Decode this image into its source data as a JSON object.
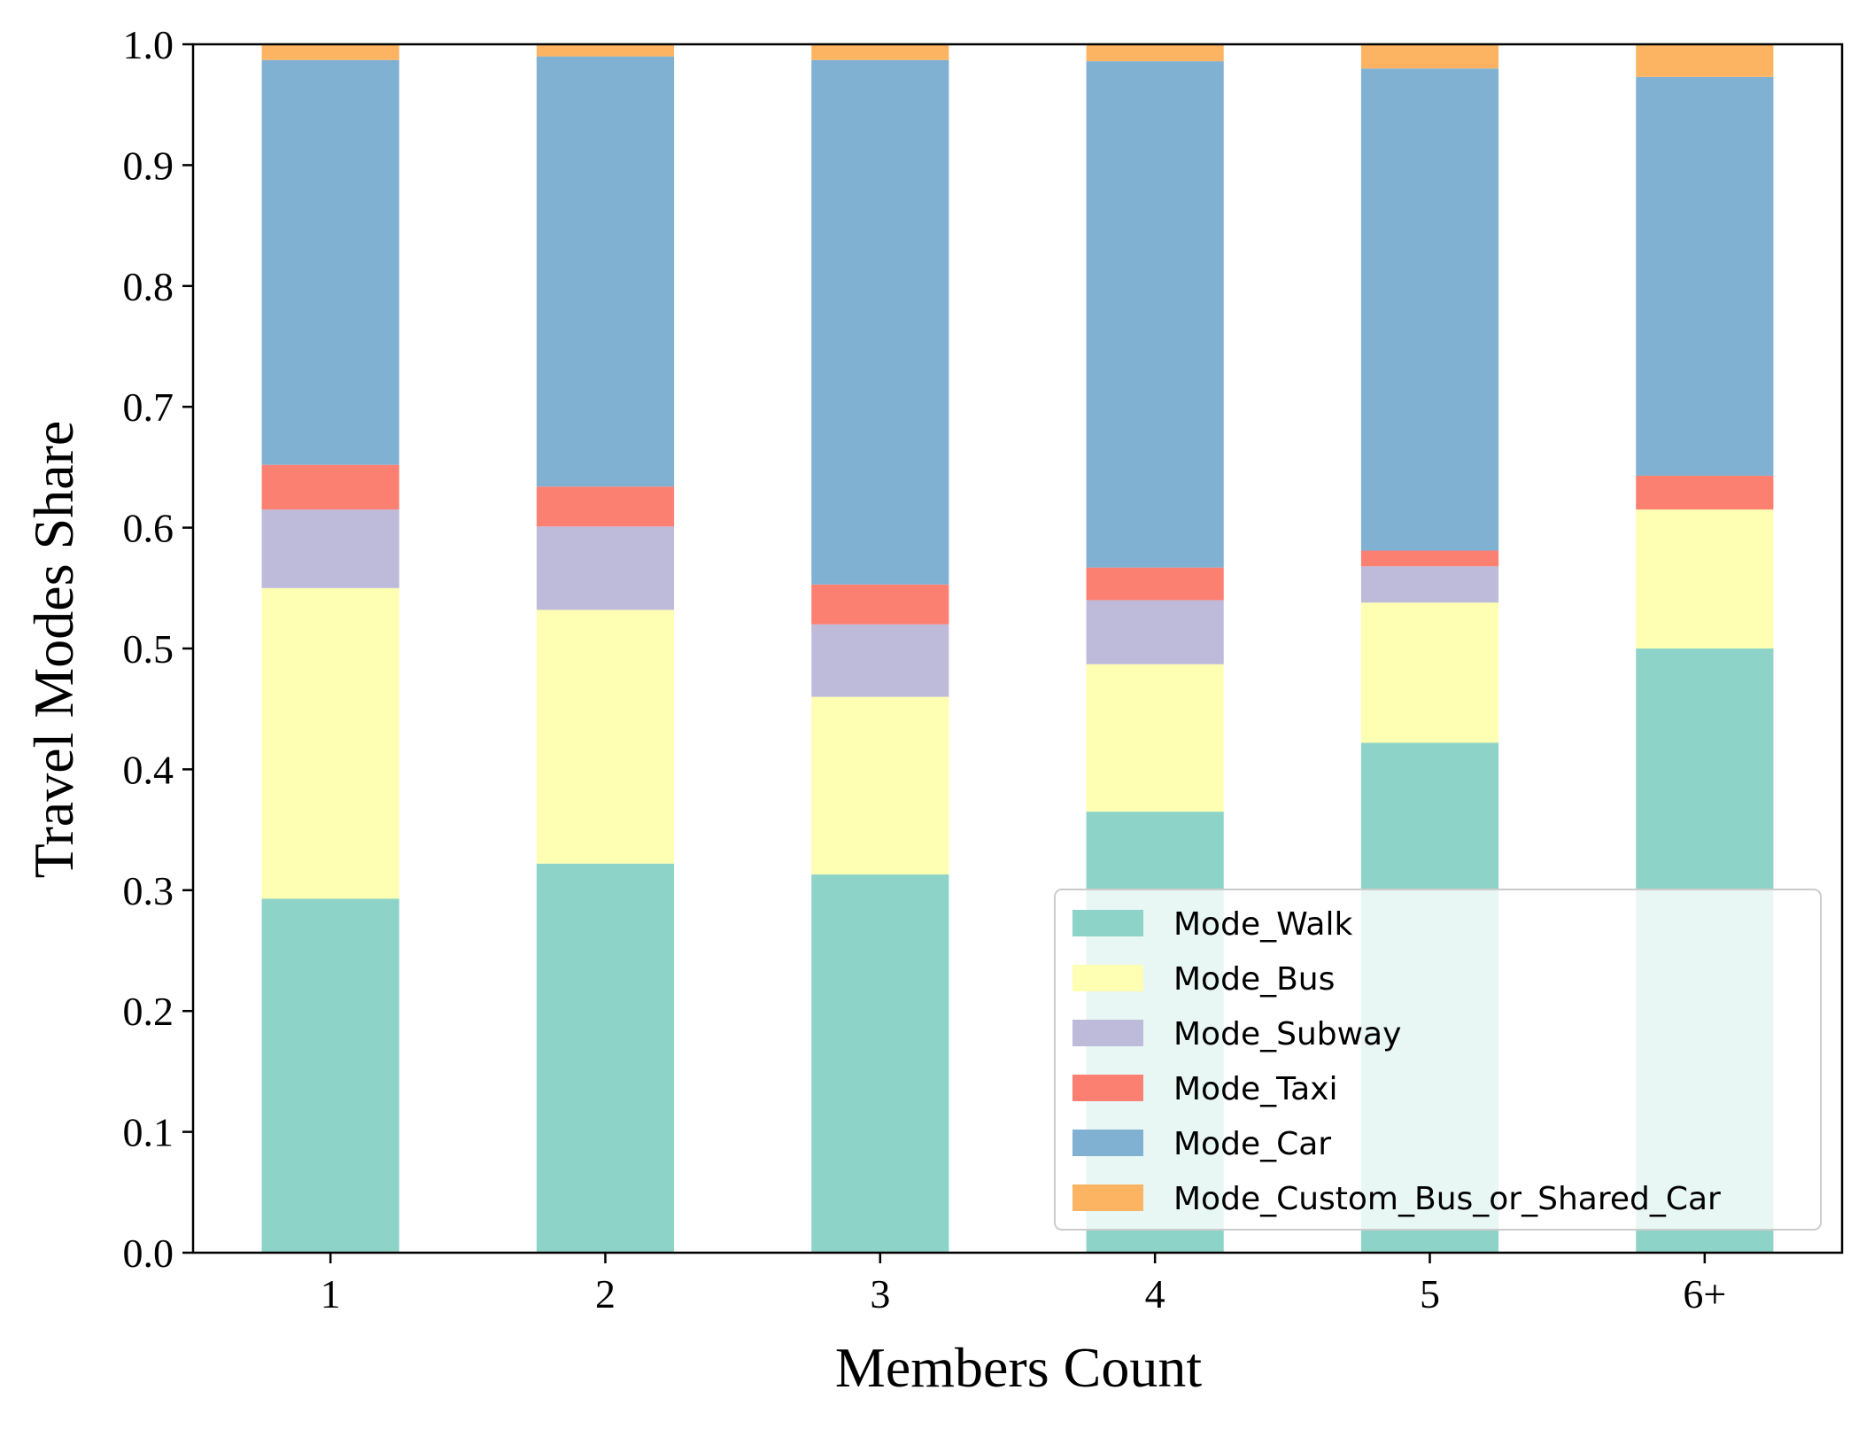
{
  "chart_data": {
    "type": "bar",
    "stacked": true,
    "categories": [
      "1",
      "2",
      "3",
      "4",
      "5",
      "6+"
    ],
    "series": [
      {
        "name": "Mode_Walk",
        "color": "#8dd3c7",
        "values": [
          0.293,
          0.322,
          0.313,
          0.365,
          0.422,
          0.5
        ]
      },
      {
        "name": "Mode_Bus",
        "color": "#ffffb3",
        "values": [
          0.257,
          0.21,
          0.147,
          0.122,
          0.116,
          0.115
        ]
      },
      {
        "name": "Mode_Subway",
        "color": "#bebada",
        "values": [
          0.065,
          0.069,
          0.06,
          0.053,
          0.03,
          0.0
        ]
      },
      {
        "name": "Mode_Taxi",
        "color": "#fb8072",
        "values": [
          0.037,
          0.033,
          0.033,
          0.027,
          0.013,
          0.028
        ]
      },
      {
        "name": "Mode_Car",
        "color": "#80b1d3",
        "values": [
          0.335,
          0.356,
          0.434,
          0.419,
          0.399,
          0.33
        ]
      },
      {
        "name": "Mode_Custom_Bus_or_Shared_Car",
        "color": "#fdb462",
        "values": [
          0.013,
          0.01,
          0.013,
          0.014,
          0.02,
          0.027
        ]
      }
    ],
    "xlabel": "Members Count",
    "ylabel": "Travel Modes Share",
    "ylim": [
      0.0,
      1.0
    ],
    "yticks": [
      "0.0",
      "0.1",
      "0.2",
      "0.3",
      "0.4",
      "0.5",
      "0.6",
      "0.7",
      "0.8",
      "0.9",
      "1.0"
    ],
    "grid": false,
    "legend_position": "lower-right"
  }
}
